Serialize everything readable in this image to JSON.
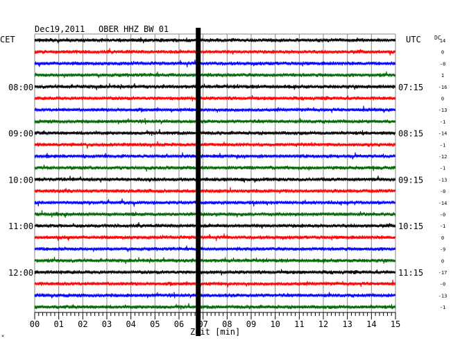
{
  "header": {
    "date": "Dec19,2011",
    "station": "OBER HHZ BW 01"
  },
  "left_axis_label": "CET",
  "right_axis_label": "UTC",
  "offset_header": "DC",
  "xlabel": "Zeit [min]",
  "footnote": "×",
  "chart_data": {
    "type": "line",
    "xlim": [
      0,
      15
    ],
    "x_ticks": [
      "00",
      "01",
      "02",
      "03",
      "04",
      "05",
      "06",
      "07",
      "08",
      "09",
      "10",
      "11",
      "12",
      "13",
      "14",
      "15"
    ],
    "traces_per_hour": 4,
    "trace_colors": [
      "#000000",
      "#ff0000",
      "#0000ff",
      "#006600"
    ],
    "left_time_labels": [
      {
        "trace": 4,
        "label": "08:00"
      },
      {
        "trace": 8,
        "label": "09:00"
      },
      {
        "trace": 12,
        "label": "10:00"
      },
      {
        "trace": 16,
        "label": "11:00"
      },
      {
        "trace": 20,
        "label": "12:00"
      }
    ],
    "right_time_labels": [
      {
        "trace": 4,
        "label": "07:15"
      },
      {
        "trace": 8,
        "label": "08:15"
      },
      {
        "trace": 12,
        "label": "09:15"
      },
      {
        "trace": 16,
        "label": "10:15"
      },
      {
        "trace": 20,
        "label": "11:15"
      }
    ],
    "dc_offsets": [
      "14",
      "0",
      "-8",
      "1",
      "-16",
      "0",
      "-13",
      "-1",
      "-14",
      "-1",
      "-12",
      "-1",
      "-13",
      "-0",
      "-14",
      "-0",
      "-1",
      "0",
      "-9",
      "0",
      "-17",
      "-0",
      "-13",
      "-1"
    ],
    "event_marker_minute": 6.8,
    "grid": true
  }
}
